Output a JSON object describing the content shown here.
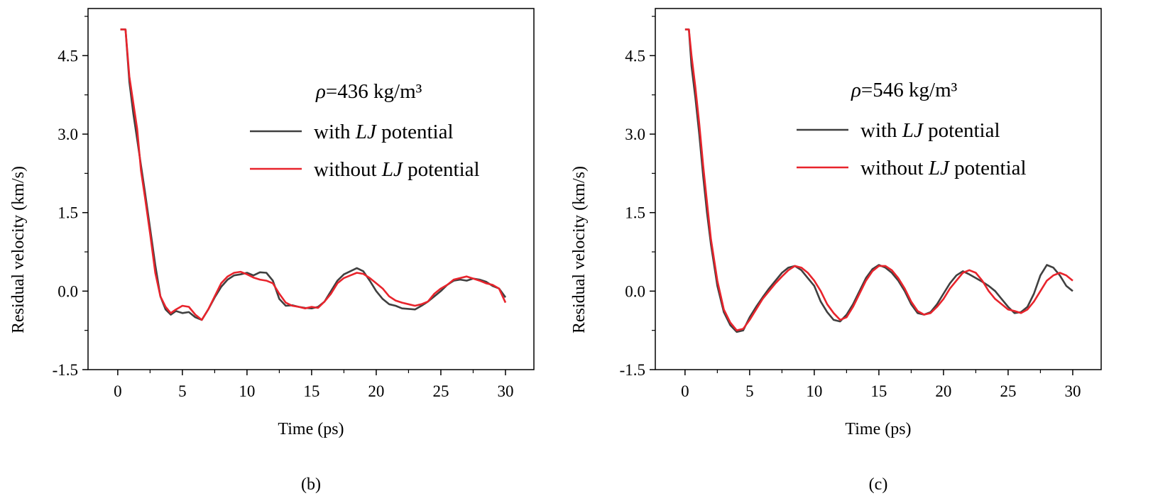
{
  "chart_data": [
    {
      "type": "line",
      "panel_label": "(b)",
      "annotation": {
        "symbol": "ρ",
        "text": "=436 kg/m³"
      },
      "xlabel": "Time (ps)",
      "ylabel": "Residual velocity (km/s)",
      "xlim": [
        -2.3,
        32.2
      ],
      "ylim": [
        -1.5,
        5.4
      ],
      "xticks": [
        0,
        5,
        10,
        15,
        20,
        25,
        30
      ],
      "xtick_labels": [
        "0",
        "5",
        "10",
        "15",
        "20",
        "25",
        "30"
      ],
      "yticks": [
        -1.5,
        0.0,
        1.5,
        3.0,
        4.5
      ],
      "ytick_labels": [
        "-1.5",
        "0.0",
        "1.5",
        "3.0",
        "4.5"
      ],
      "grid": false,
      "legend_position": "upper-right",
      "series": [
        {
          "name_prefix": "with ",
          "name_em": "LJ",
          "name_suffix": " potential",
          "color": "#404040",
          "x": [
            0.2,
            0.6,
            0.9,
            1.2,
            1.5,
            1.8,
            2.1,
            2.5,
            2.9,
            3.3,
            3.7,
            4.1,
            4.5,
            5.0,
            5.5,
            6.0,
            6.5,
            7.0,
            7.5,
            8.0,
            8.5,
            9.0,
            9.5,
            10.0,
            10.5,
            11.0,
            11.5,
            12.0,
            12.5,
            13.0,
            13.5,
            14.0,
            14.5,
            15.0,
            15.5,
            16.0,
            16.5,
            17.0,
            17.5,
            18.0,
            18.5,
            19.0,
            19.5,
            20.0,
            20.5,
            21.0,
            21.5,
            22.0,
            22.5,
            23.0,
            23.5,
            24.0,
            24.5,
            25.0,
            25.5,
            26.0,
            26.5,
            27.0,
            27.5,
            28.0,
            28.5,
            29.0,
            29.5,
            30.0
          ],
          "y": [
            5.0,
            5.0,
            4.0,
            3.4,
            2.9,
            2.4,
            1.9,
            1.2,
            0.5,
            -0.1,
            -0.35,
            -0.45,
            -0.38,
            -0.42,
            -0.4,
            -0.5,
            -0.55,
            -0.35,
            -0.12,
            0.08,
            0.22,
            0.3,
            0.32,
            0.35,
            0.3,
            0.36,
            0.35,
            0.2,
            -0.15,
            -0.28,
            -0.27,
            -0.3,
            -0.32,
            -0.33,
            -0.3,
            -0.2,
            0.0,
            0.2,
            0.32,
            0.38,
            0.44,
            0.38,
            0.2,
            0.0,
            -0.15,
            -0.25,
            -0.28,
            -0.33,
            -0.34,
            -0.35,
            -0.28,
            -0.2,
            -0.1,
            0.0,
            0.12,
            0.2,
            0.22,
            0.2,
            0.24,
            0.22,
            0.18,
            0.1,
            0.05,
            -0.12
          ]
        },
        {
          "name_prefix": "without ",
          "name_em": "LJ",
          "name_suffix": " potential",
          "color": "#e8242c",
          "x": [
            0.2,
            0.6,
            0.9,
            1.2,
            1.5,
            1.8,
            2.1,
            2.5,
            2.9,
            3.3,
            3.7,
            4.1,
            4.5,
            5.0,
            5.5,
            6.0,
            6.5,
            7.0,
            7.5,
            8.0,
            8.5,
            9.0,
            9.5,
            10.0,
            10.5,
            11.0,
            11.5,
            12.0,
            12.5,
            13.0,
            13.5,
            14.0,
            14.5,
            15.0,
            15.5,
            16.0,
            16.5,
            17.0,
            17.5,
            18.0,
            18.5,
            19.0,
            19.5,
            20.0,
            20.5,
            21.0,
            21.5,
            22.0,
            22.5,
            23.0,
            23.5,
            24.0,
            24.5,
            25.0,
            25.5,
            26.0,
            26.5,
            27.0,
            27.5,
            28.0,
            28.5,
            29.0,
            29.5,
            30.0
          ],
          "y": [
            5.0,
            5.0,
            4.1,
            3.6,
            3.1,
            2.3,
            1.8,
            1.1,
            0.35,
            -0.1,
            -0.3,
            -0.42,
            -0.35,
            -0.28,
            -0.3,
            -0.45,
            -0.55,
            -0.35,
            -0.1,
            0.15,
            0.28,
            0.35,
            0.37,
            0.32,
            0.26,
            0.22,
            0.2,
            0.15,
            -0.05,
            -0.22,
            -0.28,
            -0.3,
            -0.33,
            -0.3,
            -0.32,
            -0.2,
            -0.05,
            0.15,
            0.25,
            0.3,
            0.35,
            0.33,
            0.25,
            0.15,
            0.05,
            -0.1,
            -0.18,
            -0.22,
            -0.25,
            -0.28,
            -0.25,
            -0.2,
            -0.05,
            0.05,
            0.12,
            0.22,
            0.25,
            0.28,
            0.24,
            0.2,
            0.15,
            0.12,
            0.05,
            -0.22
          ]
        }
      ]
    },
    {
      "type": "line",
      "panel_label": "(c)",
      "annotation": {
        "symbol": "ρ",
        "text": "=546 kg/m³"
      },
      "xlabel": "Time (ps)",
      "ylabel": "Residual velocity (km/s)",
      "xlim": [
        -2.3,
        32.2
      ],
      "ylim": [
        -1.5,
        5.4
      ],
      "xticks": [
        0,
        5,
        10,
        15,
        20,
        25,
        30
      ],
      "xtick_labels": [
        "0",
        "5",
        "10",
        "15",
        "20",
        "25",
        "30"
      ],
      "yticks": [
        -1.5,
        0.0,
        1.5,
        3.0,
        4.5
      ],
      "ytick_labels": [
        "-1.5",
        "0.0",
        "1.5",
        "3.0",
        "4.5"
      ],
      "grid": false,
      "legend_position": "upper-right",
      "series": [
        {
          "name_prefix": "with ",
          "name_em": "LJ",
          "name_suffix": " potential",
          "color": "#404040",
          "x": [
            0.0,
            0.3,
            0.5,
            0.8,
            1.1,
            1.4,
            1.7,
            2.0,
            2.5,
            3.0,
            3.5,
            4.0,
            4.5,
            5.0,
            5.5,
            6.0,
            6.5,
            7.0,
            7.5,
            8.0,
            8.5,
            9.0,
            9.5,
            10.0,
            10.5,
            11.0,
            11.5,
            12.0,
            12.5,
            13.0,
            13.5,
            14.0,
            14.5,
            15.0,
            15.5,
            16.0,
            16.5,
            17.0,
            17.5,
            18.0,
            18.5,
            19.0,
            19.5,
            20.0,
            20.5,
            21.0,
            21.5,
            22.0,
            22.5,
            23.0,
            23.5,
            24.0,
            24.5,
            25.0,
            25.5,
            26.0,
            26.5,
            27.0,
            27.5,
            28.0,
            28.5,
            29.0,
            29.5,
            30.0
          ],
          "y": [
            5.0,
            5.0,
            4.3,
            3.7,
            3.0,
            2.2,
            1.5,
            0.9,
            0.1,
            -0.4,
            -0.65,
            -0.78,
            -0.75,
            -0.5,
            -0.3,
            -0.12,
            0.05,
            0.2,
            0.35,
            0.45,
            0.48,
            0.4,
            0.25,
            0.1,
            -0.2,
            -0.4,
            -0.55,
            -0.58,
            -0.45,
            -0.25,
            0.0,
            0.25,
            0.42,
            0.5,
            0.45,
            0.35,
            0.2,
            0.0,
            -0.25,
            -0.42,
            -0.45,
            -0.4,
            -0.25,
            -0.05,
            0.15,
            0.3,
            0.38,
            0.32,
            0.25,
            0.18,
            0.1,
            0.0,
            -0.15,
            -0.3,
            -0.42,
            -0.4,
            -0.3,
            -0.05,
            0.3,
            0.5,
            0.45,
            0.3,
            0.1,
            0.0
          ]
        },
        {
          "name_prefix": "without ",
          "name_em": "LJ",
          "name_suffix": " potential",
          "color": "#e8242c",
          "x": [
            0.0,
            0.3,
            0.5,
            0.8,
            1.1,
            1.4,
            1.7,
            2.0,
            2.5,
            3.0,
            3.5,
            4.0,
            4.5,
            5.0,
            5.5,
            6.0,
            6.5,
            7.0,
            7.5,
            8.0,
            8.5,
            9.0,
            9.5,
            10.0,
            10.5,
            11.0,
            11.5,
            12.0,
            12.5,
            13.0,
            13.5,
            14.0,
            14.5,
            15.0,
            15.5,
            16.0,
            16.5,
            17.0,
            17.5,
            18.0,
            18.5,
            19.0,
            19.5,
            20.0,
            20.5,
            21.0,
            21.5,
            22.0,
            22.5,
            23.0,
            23.5,
            24.0,
            24.5,
            25.0,
            25.5,
            26.0,
            26.5,
            27.0,
            27.5,
            28.0,
            28.5,
            29.0,
            29.5,
            30.0
          ],
          "y": [
            5.0,
            5.0,
            4.5,
            3.9,
            3.2,
            2.4,
            1.7,
            1.0,
            0.2,
            -0.35,
            -0.6,
            -0.75,
            -0.72,
            -0.55,
            -0.35,
            -0.15,
            0.0,
            0.15,
            0.28,
            0.4,
            0.48,
            0.45,
            0.35,
            0.2,
            0.0,
            -0.25,
            -0.42,
            -0.55,
            -0.5,
            -0.3,
            -0.05,
            0.2,
            0.38,
            0.48,
            0.48,
            0.4,
            0.25,
            0.05,
            -0.2,
            -0.38,
            -0.45,
            -0.42,
            -0.3,
            -0.15,
            0.05,
            0.2,
            0.35,
            0.4,
            0.35,
            0.2,
            0.0,
            -0.15,
            -0.25,
            -0.35,
            -0.38,
            -0.42,
            -0.35,
            -0.2,
            0.0,
            0.2,
            0.3,
            0.35,
            0.3,
            0.2
          ]
        }
      ]
    }
  ]
}
